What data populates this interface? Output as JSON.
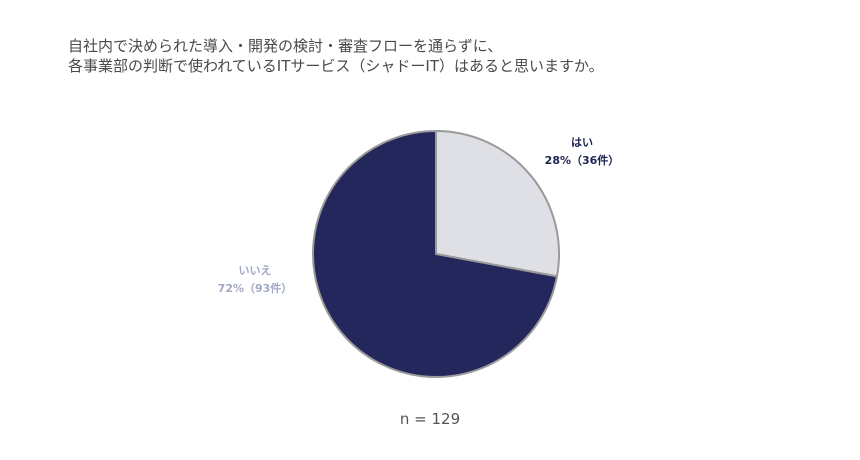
{
  "chart_data": {
    "type": "pie",
    "title_lines": [
      "自社内で決められた導入・開発の検討・審査フローを通らずに、",
      "各事業部の判断で使われているITサービス（シャドーIT）はあると思いますか。"
    ],
    "slices": [
      {
        "label": "はい",
        "value_label": "28%（36件）",
        "percent": 28,
        "count": 36,
        "color": "#dfe0e6",
        "text_color": "#1e2352"
      },
      {
        "label": "いいえ",
        "value_label": "72%（93件）",
        "percent": 72,
        "count": 93,
        "color": "#24275c",
        "text_color": "#a3a8c4"
      }
    ],
    "start_angle_deg": 0,
    "direction": "clockwise",
    "footnote": "n = 129"
  }
}
